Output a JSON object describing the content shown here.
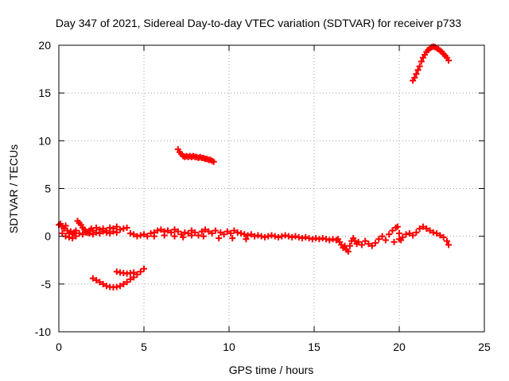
{
  "chart_data": {
    "type": "scatter",
    "title": "Day 347 of 2021, Sidereal Day-to-day VTEC variation (SDTVAR) for receiver p733",
    "xlabel": "GPS time / hours",
    "ylabel": "SDTVAR / TECUs",
    "xlim": [
      0,
      25
    ],
    "ylim": [
      -10,
      20
    ],
    "xticks": [
      0,
      5,
      10,
      15,
      20,
      25
    ],
    "yticks": [
      -10,
      -5,
      0,
      5,
      10,
      15,
      20
    ],
    "grid": true,
    "marker": "plus",
    "color": "#ff0000",
    "series": [
      {
        "name": "SDTVAR",
        "points": [
          [
            0.0,
            1.2
          ],
          [
            0.1,
            1.3
          ],
          [
            0.2,
            1.0
          ],
          [
            0.3,
            0.8
          ],
          [
            0.4,
            1.1
          ],
          [
            0.5,
            0.6
          ],
          [
            0.6,
            0.3
          ],
          [
            0.7,
            0.5
          ],
          [
            0.8,
            0.2
          ],
          [
            0.9,
            0.4
          ],
          [
            1.0,
            0.6
          ],
          [
            1.1,
            1.6
          ],
          [
            1.2,
            1.4
          ],
          [
            1.3,
            1.2
          ],
          [
            1.4,
            0.9
          ],
          [
            1.5,
            0.7
          ],
          [
            1.6,
            0.5
          ],
          [
            1.7,
            0.4
          ],
          [
            1.8,
            0.6
          ],
          [
            1.9,
            0.8
          ],
          [
            2.0,
            0.6
          ],
          [
            2.2,
            0.9
          ],
          [
            2.4,
            0.7
          ],
          [
            2.6,
            0.8
          ],
          [
            2.8,
            0.6
          ],
          [
            3.0,
            0.9
          ],
          [
            3.2,
            0.8
          ],
          [
            3.4,
            1.0
          ],
          [
            3.6,
            0.7
          ],
          [
            3.8,
            0.8
          ],
          [
            4.0,
            0.9
          ],
          [
            0.2,
            0.3
          ],
          [
            0.4,
            0.0
          ],
          [
            0.6,
            -0.1
          ],
          [
            0.8,
            -0.2
          ],
          [
            1.0,
            0.0
          ],
          [
            1.2,
            0.3
          ],
          [
            1.4,
            0.2
          ],
          [
            1.6,
            0.4
          ],
          [
            1.8,
            0.3
          ],
          [
            2.0,
            0.2
          ],
          [
            2.2,
            0.4
          ],
          [
            2.4,
            0.3
          ],
          [
            2.6,
            0.5
          ],
          [
            2.8,
            0.4
          ],
          [
            3.0,
            0.3
          ],
          [
            3.2,
            0.5
          ],
          [
            3.4,
            0.4
          ],
          [
            4.2,
            0.3
          ],
          [
            4.4,
            0.2
          ],
          [
            4.6,
            0.0
          ],
          [
            4.8,
            0.1
          ],
          [
            5.0,
            0.2
          ],
          [
            5.2,
            0.0
          ],
          [
            5.4,
            0.3
          ],
          [
            5.6,
            0.4
          ],
          [
            5.8,
            0.6
          ],
          [
            6.0,
            0.7
          ],
          [
            6.2,
            0.5
          ],
          [
            6.4,
            0.6
          ],
          [
            6.6,
            0.4
          ],
          [
            6.8,
            0.7
          ],
          [
            7.0,
            0.5
          ],
          [
            7.2,
            0.2
          ],
          [
            7.4,
            0.4
          ],
          [
            7.6,
            0.3
          ],
          [
            7.8,
            0.6
          ],
          [
            8.0,
            0.4
          ],
          [
            8.2,
            0.1
          ],
          [
            8.4,
            0.5
          ],
          [
            8.6,
            0.7
          ],
          [
            8.8,
            0.5
          ],
          [
            9.0,
            0.3
          ],
          [
            9.2,
            0.6
          ],
          [
            5.6,
            0.0
          ],
          [
            6.2,
            0.1
          ],
          [
            6.8,
            0.0
          ],
          [
            7.3,
            -0.1
          ],
          [
            7.8,
            0.1
          ],
          [
            8.5,
            0.0
          ],
          [
            9.5,
            0.4
          ],
          [
            9.7,
            0.2
          ],
          [
            9.9,
            0.5
          ],
          [
            10.1,
            0.3
          ],
          [
            10.3,
            0.6
          ],
          [
            10.5,
            0.4
          ],
          [
            10.7,
            0.3
          ],
          [
            10.9,
            0.2
          ],
          [
            11.1,
            0.1
          ],
          [
            11.3,
            0.2
          ],
          [
            11.5,
            0.0
          ],
          [
            11.7,
            0.1
          ],
          [
            11.9,
            0.0
          ],
          [
            12.1,
            -0.1
          ],
          [
            12.3,
            0.0
          ],
          [
            12.5,
            0.1
          ],
          [
            12.7,
            0.0
          ],
          [
            12.9,
            -0.1
          ],
          [
            13.1,
            0.0
          ],
          [
            13.3,
            0.1
          ],
          [
            13.5,
            0.0
          ],
          [
            13.7,
            -0.1
          ],
          [
            13.9,
            0.0
          ],
          [
            14.1,
            -0.1
          ],
          [
            14.3,
            -0.2
          ],
          [
            14.5,
            -0.1
          ],
          [
            14.7,
            -0.2
          ],
          [
            14.9,
            -0.3
          ],
          [
            15.1,
            -0.2
          ],
          [
            15.3,
            -0.3
          ],
          [
            15.5,
            -0.2
          ],
          [
            15.7,
            -0.3
          ],
          [
            15.9,
            -0.4
          ],
          [
            16.1,
            -0.3
          ],
          [
            16.3,
            -0.4
          ],
          [
            9.4,
            -0.2
          ],
          [
            10.2,
            -0.2
          ],
          [
            11.0,
            -0.3
          ],
          [
            16.4,
            -0.3
          ],
          [
            16.5,
            -0.6
          ],
          [
            16.6,
            -0.9
          ],
          [
            16.7,
            -1.2
          ],
          [
            16.8,
            -1.0
          ],
          [
            16.9,
            -1.4
          ],
          [
            17.0,
            -1.6
          ],
          [
            17.1,
            -1.0
          ],
          [
            17.2,
            -0.5
          ],
          [
            17.3,
            -0.2
          ],
          [
            17.4,
            -0.5
          ],
          [
            17.5,
            -0.8
          ],
          [
            17.6,
            -0.6
          ],
          [
            17.8,
            -0.9
          ],
          [
            18.0,
            -0.5
          ],
          [
            18.2,
            -0.8
          ],
          [
            18.4,
            -1.0
          ],
          [
            18.6,
            -0.7
          ],
          [
            18.8,
            -0.3
          ],
          [
            19.0,
            0.0
          ],
          [
            19.2,
            -0.4
          ],
          [
            19.4,
            0.2
          ],
          [
            19.6,
            0.6
          ],
          [
            19.8,
            0.9
          ],
          [
            19.9,
            1.0
          ],
          [
            20.0,
            0.3
          ],
          [
            20.1,
            -0.4
          ],
          [
            20.2,
            -0.1
          ],
          [
            20.4,
            0.2
          ],
          [
            20.6,
            0.3
          ],
          [
            20.8,
            0.1
          ],
          [
            21.0,
            0.4
          ],
          [
            21.2,
            0.8
          ],
          [
            21.4,
            1.0
          ],
          [
            21.6,
            0.8
          ],
          [
            21.8,
            0.6
          ],
          [
            22.0,
            0.4
          ],
          [
            22.2,
            0.3
          ],
          [
            22.4,
            0.1
          ],
          [
            22.6,
            -0.1
          ],
          [
            22.8,
            -0.5
          ],
          [
            22.9,
            -0.9
          ],
          [
            19.7,
            -0.6
          ],
          [
            20.0,
            -0.3
          ],
          [
            2.0,
            -4.4
          ],
          [
            2.2,
            -4.6
          ],
          [
            2.4,
            -4.8
          ],
          [
            2.6,
            -5.0
          ],
          [
            2.8,
            -5.2
          ],
          [
            3.0,
            -5.3
          ],
          [
            3.2,
            -5.35
          ],
          [
            3.4,
            -5.3
          ],
          [
            3.6,
            -5.2
          ],
          [
            3.8,
            -5.0
          ],
          [
            4.0,
            -4.8
          ],
          [
            4.2,
            -4.5
          ],
          [
            4.4,
            -4.3
          ],
          [
            4.6,
            -4.0
          ],
          [
            4.8,
            -3.7
          ],
          [
            5.0,
            -3.4
          ],
          [
            3.4,
            -3.7
          ],
          [
            3.6,
            -3.8
          ],
          [
            3.8,
            -3.85
          ],
          [
            4.0,
            -3.9
          ],
          [
            4.2,
            -3.85
          ],
          [
            4.4,
            -3.8
          ],
          [
            7.0,
            9.1
          ],
          [
            7.1,
            8.8
          ],
          [
            7.2,
            8.6
          ],
          [
            7.3,
            8.4
          ],
          [
            7.4,
            8.3
          ],
          [
            7.5,
            8.4
          ],
          [
            7.6,
            8.3
          ],
          [
            7.7,
            8.4
          ],
          [
            7.8,
            8.3
          ],
          [
            7.9,
            8.4
          ],
          [
            8.0,
            8.3
          ],
          [
            8.1,
            8.3
          ],
          [
            8.2,
            8.2
          ],
          [
            8.3,
            8.3
          ],
          [
            8.4,
            8.2
          ],
          [
            8.5,
            8.2
          ],
          [
            8.6,
            8.1
          ],
          [
            8.7,
            8.1
          ],
          [
            8.8,
            8.0
          ],
          [
            8.9,
            8.0
          ],
          [
            9.0,
            7.9
          ],
          [
            9.1,
            7.8
          ],
          [
            20.8,
            16.3
          ],
          [
            20.9,
            16.6
          ],
          [
            21.0,
            17.0
          ],
          [
            21.1,
            17.4
          ],
          [
            21.2,
            17.8
          ],
          [
            21.3,
            18.3
          ],
          [
            21.4,
            18.7
          ],
          [
            21.5,
            19.0
          ],
          [
            21.6,
            19.3
          ],
          [
            21.7,
            19.5
          ],
          [
            21.8,
            19.7
          ],
          [
            21.9,
            19.8
          ],
          [
            22.0,
            19.85
          ],
          [
            22.1,
            19.8
          ],
          [
            22.2,
            19.7
          ],
          [
            22.3,
            19.6
          ],
          [
            22.4,
            19.45
          ],
          [
            22.5,
            19.3
          ],
          [
            22.6,
            19.1
          ],
          [
            22.7,
            18.9
          ],
          [
            22.8,
            18.7
          ],
          [
            22.9,
            18.4
          ]
        ]
      }
    ]
  }
}
